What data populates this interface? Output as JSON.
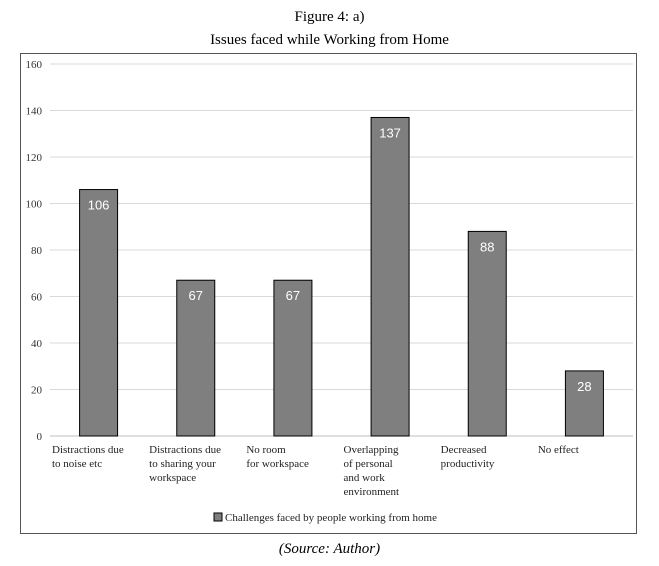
{
  "figure": {
    "title_line1": "Figure 4: a)",
    "title_line2": "Issues faced while Working from Home",
    "source": "(Source: Author)"
  },
  "chart_data": {
    "type": "bar",
    "title": "",
    "categories": [
      [
        "Distractions due",
        "to noise etc"
      ],
      [
        "Distractions due",
        "to sharing your",
        "workspace"
      ],
      [
        "No room",
        "for workspace"
      ],
      [
        "Overlapping",
        "of personal",
        "and work",
        "environment"
      ],
      [
        "Decreased",
        "productivity"
      ],
      [
        "No effect"
      ]
    ],
    "series": [
      {
        "name": "Challenges faced by people working from home",
        "values": [
          106,
          67,
          67,
          137,
          88,
          28
        ]
      }
    ],
    "ylim": [
      0,
      160
    ],
    "yticks": [
      0,
      20,
      40,
      60,
      80,
      100,
      120,
      140,
      160
    ],
    "grid": true,
    "legend": "bottom",
    "data_labels": true,
    "colors": {
      "bar": "#7f7f7f",
      "bar_edge": "#000000",
      "grid": "#d9d9d9",
      "label": "#ffffff"
    }
  }
}
